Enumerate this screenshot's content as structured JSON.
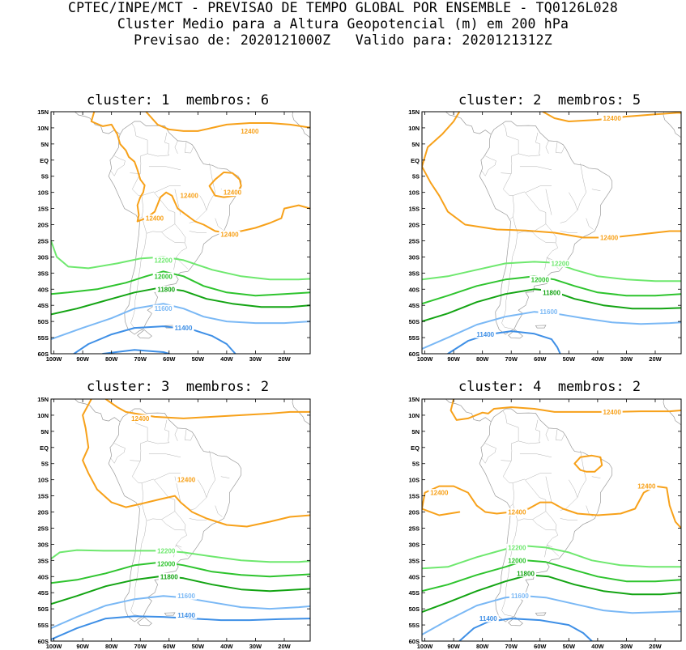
{
  "header": {
    "line1": "CPTEC/INPE/MCT - PREVISAO DE TEMPO GLOBAL POR ENSEMBLE - TQ0126L028",
    "line2": "Cluster Medio para a Altura Geopotencial (m) em 200 hPa",
    "line3": "Previsao de: 2020121000Z   Valido para: 2020121312Z"
  },
  "axes": {
    "lat_labels": [
      "15N",
      "10N",
      "5N",
      "EQ",
      "5S",
      "10S",
      "15S",
      "20S",
      "25S",
      "30S",
      "35S",
      "40S",
      "45S",
      "50S",
      "55S",
      "60S"
    ],
    "lon_labels": [
      "100W",
      "90W",
      "80W",
      "70W",
      "60W",
      "50W",
      "40W",
      "30W",
      "20W"
    ]
  },
  "contour_colors": {
    "12400": "#f7a11a",
    "12200": "#6ee86e",
    "12000": "#2ec42e",
    "11800": "#13a413",
    "11600": "#7ab8f5",
    "11400": "#3e8fe6"
  },
  "panels": [
    {
      "title": "cluster: 1  membros: 6",
      "labels": [
        {
          "text": "12400",
          "level": "12400",
          "lon": -53,
          "lat": -11
        },
        {
          "text": "12400",
          "level": "12400",
          "lon": -65,
          "lat": -18
        },
        {
          "text": "12400",
          "level": "12400",
          "lon": -39,
          "lat": -23
        },
        {
          "text": "12400",
          "level": "12400",
          "lon": -32,
          "lat": 9
        },
        {
          "text": "12400",
          "level": "12400",
          "lon": -38,
          "lat": -10
        },
        {
          "text": "12200",
          "level": "12200",
          "lon": -62,
          "lat": -31
        },
        {
          "text": "12000",
          "level": "12000",
          "lon": -62,
          "lat": -36
        },
        {
          "text": "11800",
          "level": "11800",
          "lon": -61,
          "lat": -40
        },
        {
          "text": "11600",
          "level": "11600",
          "lon": -62,
          "lat": -46
        },
        {
          "text": "11400",
          "level": "11400",
          "lon": -55,
          "lat": -52
        }
      ]
    },
    {
      "title": "cluster: 2  membros: 5",
      "labels": [
        {
          "text": "12400",
          "level": "12400",
          "lon": -35,
          "lat": 13
        },
        {
          "text": "12400",
          "level": "12400",
          "lon": -36,
          "lat": -24
        },
        {
          "text": "12200",
          "level": "12200",
          "lon": -53,
          "lat": -32
        },
        {
          "text": "12000",
          "level": "12000",
          "lon": -60,
          "lat": -37
        },
        {
          "text": "11800",
          "level": "11800",
          "lon": -56,
          "lat": -41
        },
        {
          "text": "11600",
          "level": "11600",
          "lon": -57,
          "lat": -47
        },
        {
          "text": "11400",
          "level": "11400",
          "lon": -79,
          "lat": -54
        }
      ]
    },
    {
      "title": "cluster: 3  membros: 2",
      "labels": [
        {
          "text": "12400",
          "level": "12400",
          "lon": -70,
          "lat": 9
        },
        {
          "text": "12400",
          "level": "12400",
          "lon": -54,
          "lat": -10
        },
        {
          "text": "12200",
          "level": "12200",
          "lon": -61,
          "lat": -32
        },
        {
          "text": "12000",
          "level": "12000",
          "lon": -61,
          "lat": -36
        },
        {
          "text": "11800",
          "level": "11800",
          "lon": -60,
          "lat": -40
        },
        {
          "text": "11600",
          "level": "11600",
          "lon": -54,
          "lat": -46
        },
        {
          "text": "11400",
          "level": "11400",
          "lon": -54,
          "lat": -52
        }
      ]
    },
    {
      "title": "cluster: 4  membros: 2",
      "labels": [
        {
          "text": "12400",
          "level": "12400",
          "lon": -35,
          "lat": 11
        },
        {
          "text": "12400",
          "level": "12400",
          "lon": -95,
          "lat": -14
        },
        {
          "text": "12400",
          "level": "12400",
          "lon": -23,
          "lat": -12
        },
        {
          "text": "12400",
          "level": "12400",
          "lon": -68,
          "lat": -20
        },
        {
          "text": "12200",
          "level": "12200",
          "lon": -68,
          "lat": -31
        },
        {
          "text": "12000",
          "level": "12000",
          "lon": -68,
          "lat": -35
        },
        {
          "text": "11800",
          "level": "11800",
          "lon": -65,
          "lat": -39
        },
        {
          "text": "11600",
          "level": "11600",
          "lon": -67,
          "lat": -46
        },
        {
          "text": "11400",
          "level": "11400",
          "lon": -78,
          "lat": -53
        }
      ]
    }
  ]
}
